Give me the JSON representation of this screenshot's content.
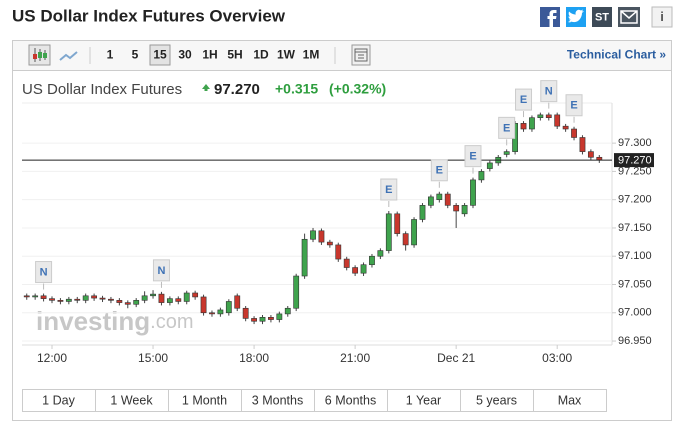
{
  "header": {
    "title": "US Dollar Index Futures Overview",
    "share_label": "ST",
    "info": "i"
  },
  "toolbar": {
    "intervals": [
      "1",
      "5",
      "15",
      "30",
      "1H",
      "5H",
      "1D",
      "1W",
      "1M"
    ],
    "selected": "15",
    "link": "Technical Chart »"
  },
  "quote": {
    "name": "US Dollar Index Futures",
    "last": "97.270",
    "change": "+0.315",
    "change_pct": "(+0.32%)"
  },
  "chart_data": {
    "type": "candlestick",
    "categories": [
      null,
      null,
      null,
      "12:00",
      null,
      null,
      null,
      null,
      null,
      null,
      null,
      null,
      null,
      null,
      null,
      "15:00",
      null,
      null,
      null,
      null,
      null,
      null,
      null,
      null,
      null,
      null,
      null,
      "18:00",
      null,
      null,
      null,
      null,
      null,
      null,
      null,
      null,
      null,
      null,
      null,
      "21:00",
      null,
      null,
      null,
      null,
      null,
      null,
      null,
      null,
      null,
      null,
      null,
      "Dec 21",
      null,
      null,
      null,
      null,
      null,
      null,
      null,
      null,
      null,
      null,
      null,
      "03:00",
      null,
      null,
      null,
      null,
      null
    ],
    "open": [
      97.03,
      97.028,
      97.03,
      97.025,
      97.022,
      97.02,
      97.024,
      97.022,
      97.03,
      97.026,
      97.024,
      97.022,
      97.018,
      97.015,
      97.022,
      97.03,
      97.033,
      97.018,
      97.025,
      97.02,
      97.035,
      97.028,
      97.0,
      96.998,
      97.0,
      97.03,
      97.008,
      96.99,
      96.985,
      96.992,
      96.988,
      96.998,
      97.008,
      97.065,
      97.13,
      97.145,
      97.125,
      97.12,
      97.095,
      97.08,
      97.07,
      97.085,
      97.1,
      97.11,
      97.175,
      97.14,
      97.12,
      97.165,
      97.19,
      97.2,
      97.21,
      97.19,
      97.175,
      97.19,
      97.235,
      97.255,
      97.265,
      97.28,
      97.285,
      97.335,
      97.325,
      97.345,
      97.35,
      97.35,
      97.33,
      97.325,
      97.31,
      97.285,
      97.275
    ],
    "high": [
      97.034,
      97.034,
      97.034,
      97.029,
      97.026,
      97.028,
      97.028,
      97.034,
      97.034,
      97.03,
      97.028,
      97.026,
      97.022,
      97.026,
      97.038,
      97.04,
      97.037,
      97.029,
      97.029,
      97.039,
      97.039,
      97.032,
      97.004,
      97.009,
      97.024,
      97.034,
      97.012,
      96.994,
      96.996,
      96.996,
      97.002,
      97.012,
      97.069,
      97.14,
      97.15,
      97.149,
      97.129,
      97.124,
      97.099,
      97.084,
      97.089,
      97.104,
      97.114,
      97.18,
      97.179,
      97.144,
      97.169,
      97.194,
      97.209,
      97.214,
      97.214,
      97.194,
      97.194,
      97.239,
      97.254,
      97.269,
      97.279,
      97.289,
      97.339,
      97.339,
      97.349,
      97.354,
      97.354,
      97.354,
      97.334,
      97.329,
      97.314,
      97.289,
      97.279
    ],
    "low": [
      97.023,
      97.023,
      97.02,
      97.017,
      97.015,
      97.015,
      97.017,
      97.017,
      97.021,
      97.019,
      97.017,
      97.013,
      97.008,
      97.01,
      97.017,
      97.025,
      97.013,
      97.013,
      97.015,
      97.015,
      97.023,
      96.995,
      96.993,
      96.993,
      96.995,
      97.003,
      96.985,
      96.98,
      96.98,
      96.983,
      96.983,
      96.993,
      97.003,
      97.06,
      97.125,
      97.12,
      97.115,
      97.09,
      97.075,
      97.065,
      97.065,
      97.08,
      97.095,
      97.105,
      97.135,
      97.11,
      97.115,
      97.16,
      97.185,
      97.195,
      97.185,
      97.15,
      97.17,
      97.185,
      97.23,
      97.25,
      97.26,
      97.275,
      97.28,
      97.32,
      97.32,
      97.34,
      97.34,
      97.325,
      97.32,
      97.305,
      97.28,
      97.27,
      97.265
    ],
    "close": [
      97.028,
      97.03,
      97.025,
      97.022,
      97.02,
      97.024,
      97.022,
      97.03,
      97.026,
      97.024,
      97.022,
      97.018,
      97.015,
      97.022,
      97.03,
      97.033,
      97.018,
      97.025,
      97.02,
      97.035,
      97.028,
      97.0,
      96.998,
      97.005,
      97.02,
      97.008,
      96.99,
      96.985,
      96.992,
      96.988,
      96.998,
      97.008,
      97.065,
      97.13,
      97.145,
      97.125,
      97.12,
      97.095,
      97.08,
      97.07,
      97.085,
      97.1,
      97.11,
      97.175,
      97.14,
      97.12,
      97.165,
      97.19,
      97.205,
      97.21,
      97.19,
      97.18,
      97.19,
      97.235,
      97.25,
      97.265,
      97.275,
      97.285,
      97.335,
      97.325,
      97.345,
      97.35,
      97.345,
      97.33,
      97.325,
      97.31,
      97.285,
      97.275,
      97.27
    ],
    "up_color": "#3fa34d",
    "down_color": "#c8372d",
    "last": {
      "value": 97.27,
      "label": "97.270"
    },
    "events": [
      {
        "label": "N",
        "at": 2
      },
      {
        "label": "N",
        "at": 16
      },
      {
        "label": "E",
        "at": 43
      },
      {
        "label": "E",
        "at": 49
      },
      {
        "label": "E",
        "at": 53
      },
      {
        "label": "E",
        "at": 57
      },
      {
        "label": "E",
        "at": 59
      },
      {
        "label": "N",
        "at": 62
      },
      {
        "label": "E",
        "at": 65
      }
    ],
    "ylim": [
      96.943,
      97.371
    ],
    "yticks": [
      {
        "value": 96.95,
        "label": "96.950"
      },
      {
        "value": 97.0,
        "label": "97.000"
      },
      {
        "value": 97.05,
        "label": "97.050"
      },
      {
        "value": 97.1,
        "label": "97.100"
      },
      {
        "value": 97.15,
        "label": "97.150"
      },
      {
        "value": 97.2,
        "label": "97.200"
      },
      {
        "value": 97.25,
        "label": "97.250"
      },
      {
        "value": 97.3,
        "label": "97.300"
      }
    ],
    "grid": true,
    "watermark": [
      "investing",
      ".com"
    ]
  },
  "ranges": [
    "1 Day",
    "1 Week",
    "1 Month",
    "3 Months",
    "6 Months",
    "1 Year",
    "5 years",
    "Max"
  ]
}
